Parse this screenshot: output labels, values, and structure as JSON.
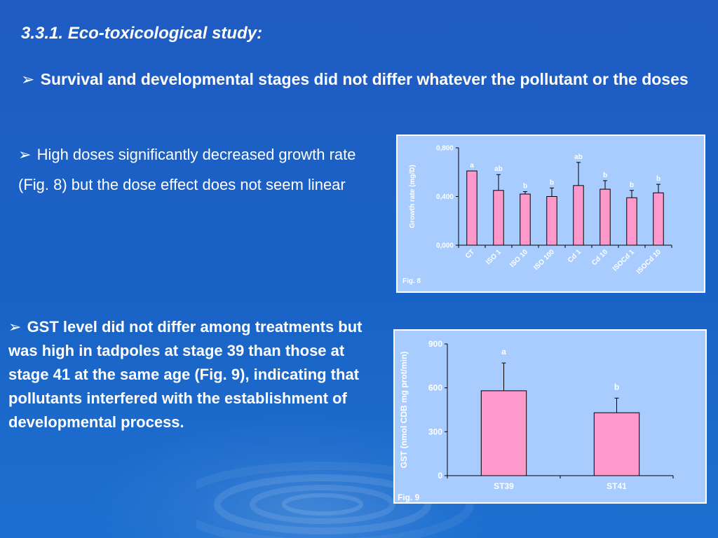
{
  "slide": {
    "title": "3.3.1. Eco-toxicological study:",
    "bullets": [
      {
        "arrow": "➢",
        "text": "Survival and developmental stages did not differ whatever the pollutant or the doses"
      },
      {
        "arrow": "➢",
        "text": "High doses significantly decreased growth rate (Fig. 8) but the dose effect does not seem linear"
      },
      {
        "arrow": "➢",
        "text": "GST level did not differ among treatments but was high in tadpoles at stage 39 than those at stage 41 at the same age (Fig. 9), indicating that pollutants interfered with the establishment of developmental process."
      }
    ]
  },
  "chart_data": [
    {
      "type": "bar",
      "figure_label": "Fig. 8",
      "ylabel": "Growth rate (mg/D)",
      "categories": [
        "CT",
        "ISO 1",
        "ISO 10",
        "ISO 100",
        "Cd 1",
        "Cd 10",
        "ISOCd 1",
        "ISOCd 10"
      ],
      "values": [
        0.61,
        0.45,
        0.42,
        0.4,
        0.49,
        0.46,
        0.39,
        0.43
      ],
      "errors": [
        0.0,
        0.13,
        0.02,
        0.07,
        0.19,
        0.07,
        0.06,
        0.07
      ],
      "letters": [
        "a",
        "ab",
        "b",
        "b",
        "ab",
        "b",
        "b",
        "b"
      ],
      "ylim": [
        0,
        0.8
      ],
      "yticks": [
        "0,000",
        "0,400",
        "0,800"
      ],
      "ytick_values": [
        0,
        0.4,
        0.8
      ],
      "bar_color": "#ff99cc",
      "text_color": "#ffffff",
      "grid": false
    },
    {
      "type": "bar",
      "figure_label": "Fig. 9",
      "ylabel": "GST (nmol CDB mg prot/min)",
      "categories": [
        "ST39",
        "ST41"
      ],
      "values": [
        580,
        430
      ],
      "errors": [
        190,
        100
      ],
      "letters": [
        "a",
        "b"
      ],
      "ylim": [
        0,
        900
      ],
      "yticks": [
        "0",
        "300",
        "600",
        "900"
      ],
      "ytick_values": [
        0,
        300,
        600,
        900
      ],
      "bar_color": "#ff99cc",
      "text_color": "#ffffff",
      "grid": false
    }
  ]
}
